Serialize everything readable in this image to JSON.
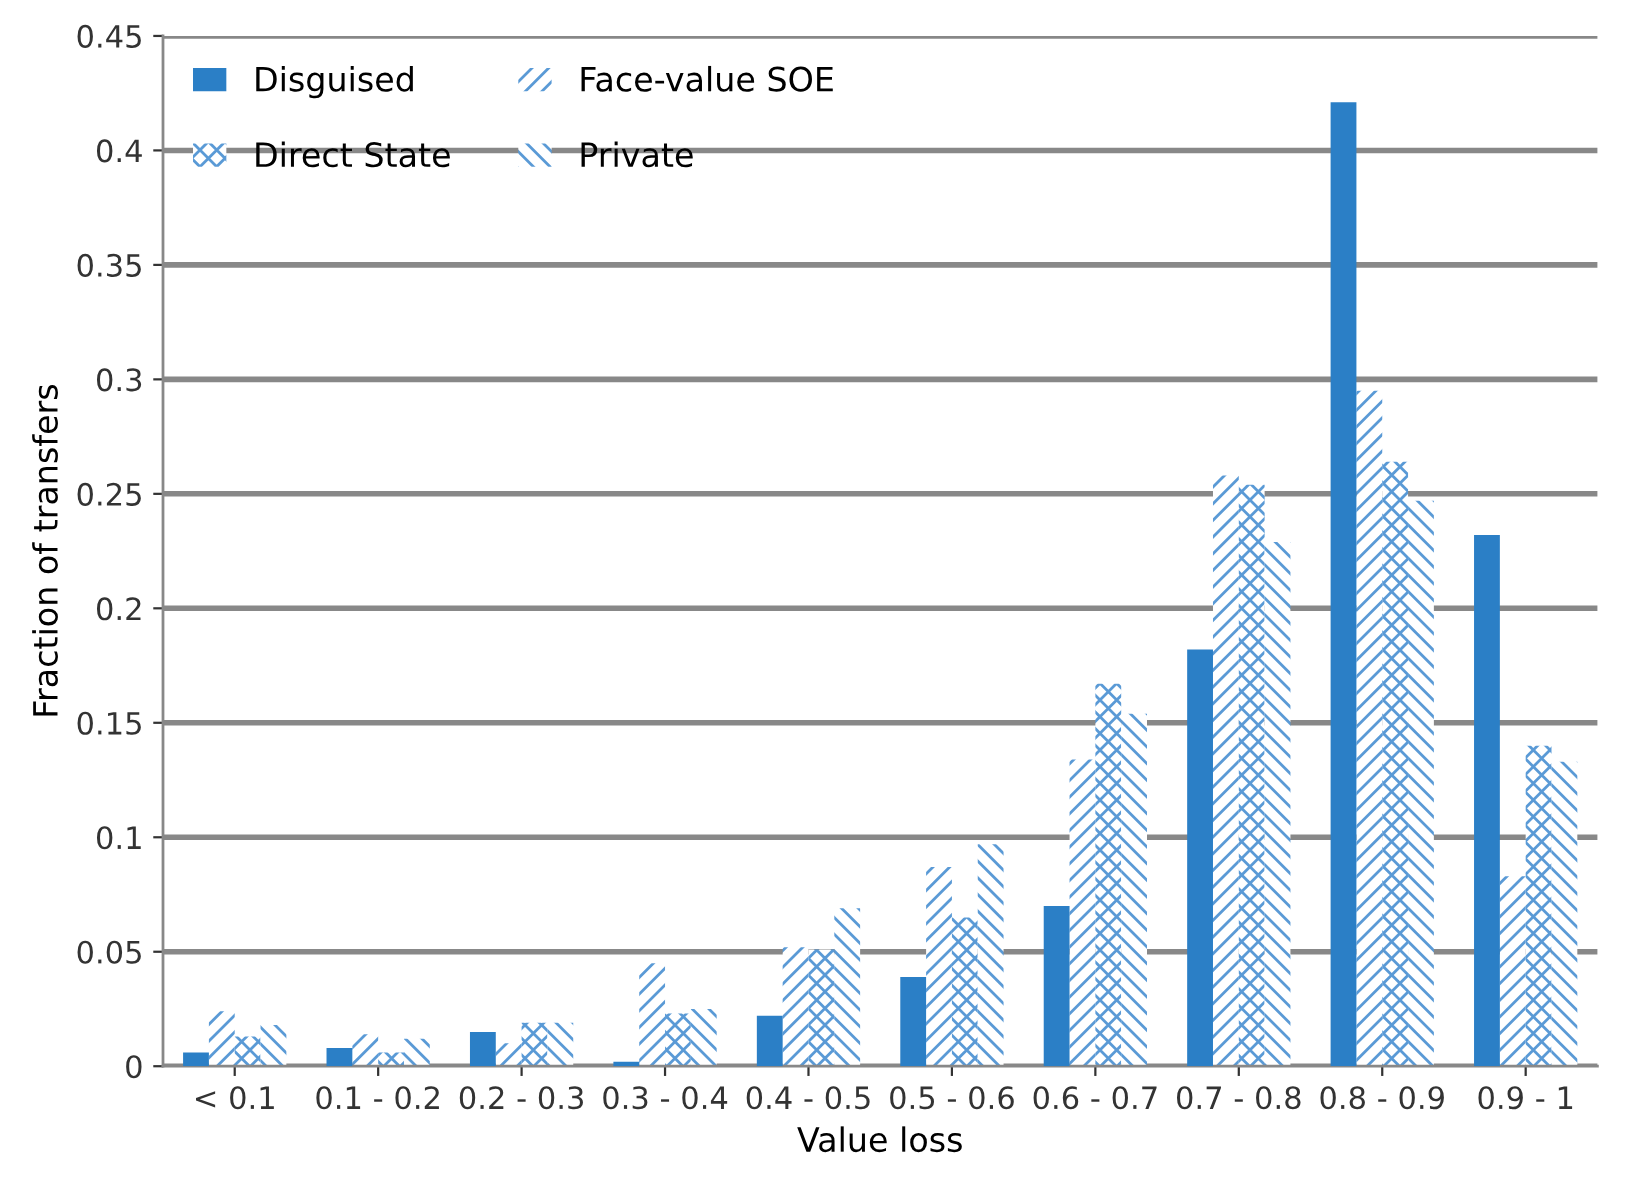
{
  "chart_data": {
    "type": "bar",
    "xlabel": "Value loss",
    "ylabel": "Fraction of transfers",
    "categories": [
      "< 0.1",
      "0.1 - 0.2",
      "0.2 - 0.3",
      "0.3 - 0.4",
      "0.4 - 0.5",
      "0.5 - 0.6",
      "0.6 - 0.7",
      "0.7 - 0.8",
      "0.8 - 0.9",
      "0.9 - 1"
    ],
    "series": [
      {
        "name": "Disguised",
        "color": "#2b7fc6",
        "values": [
          0.006,
          0.008,
          0.015,
          0.002,
          0.022,
          0.039,
          0.07,
          0.182,
          0.421,
          0.232
        ]
      },
      {
        "name": "Face-value SOE",
        "color": "#5a9ad6",
        "values": [
          0.024,
          0.014,
          0.01,
          0.045,
          0.052,
          0.087,
          0.134,
          0.258,
          0.295,
          0.083
        ]
      },
      {
        "name": "Direct State",
        "color": "#5a9ad6",
        "values": [
          0.013,
          0.006,
          0.019,
          0.023,
          0.051,
          0.065,
          0.167,
          0.254,
          0.264,
          0.14
        ]
      },
      {
        "name": "Private",
        "color": "#5a9ad6",
        "values": [
          0.018,
          0.012,
          0.019,
          0.025,
          0.069,
          0.097,
          0.154,
          0.229,
          0.247,
          0.133
        ]
      }
    ],
    "ylim": [
      0,
      0.45
    ],
    "yticks": [
      0,
      0.05,
      0.1,
      0.15,
      0.2,
      0.25,
      0.3,
      0.35,
      0.4,
      0.45
    ],
    "grid": "y",
    "legend": "top left"
  }
}
